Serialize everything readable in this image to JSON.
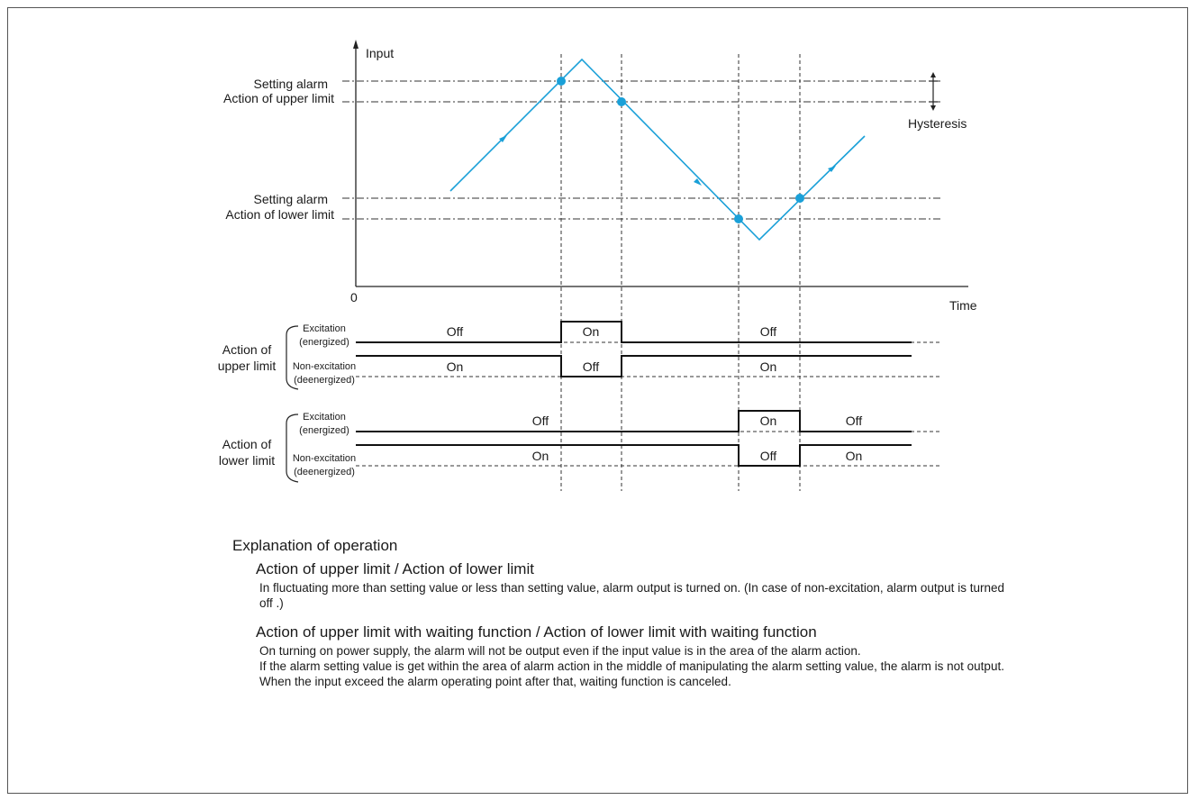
{
  "colors": {
    "signal": "#1aa0d8",
    "line": "#222222"
  },
  "diagram": {
    "axis_y_label": "Input",
    "axis_x_label": "Time",
    "origin_label": "0",
    "upper_setting": [
      "Setting alarm",
      "Action of upper limit"
    ],
    "lower_setting": [
      "Setting alarm",
      "Action of lower limit"
    ],
    "hysteresis_label": "Hysteresis",
    "groups": [
      {
        "title": [
          "Action of",
          "upper limit"
        ],
        "excitation": [
          "Excitation",
          "(energized)"
        ],
        "non_excitation": [
          "Non-excitation",
          "(deenergized)"
        ],
        "exc_states": [
          "Off",
          "On",
          "Off"
        ],
        "nonexc_states": [
          "On",
          "Off",
          "On"
        ]
      },
      {
        "title": [
          "Action of",
          "lower limit"
        ],
        "excitation": [
          "Excitation",
          "(energized)"
        ],
        "non_excitation": [
          "Non-excitation",
          "(deenergized)"
        ],
        "exc_states": [
          "Off",
          "On",
          "Off"
        ],
        "nonexc_states": [
          "On",
          "Off",
          "On"
        ]
      }
    ]
  },
  "explanation": {
    "heading": "Explanation of operation",
    "section1_title": "Action of upper limit  / Action of lower limit",
    "section1_body": "In fluctuating more than setting value or less than setting value, alarm output is turned on. (In case of non-excitation, alarm output is turned off .)",
    "section2_title": "Action of upper limit with waiting function  /   Action of lower limit with waiting function",
    "section2_body1": "On turning on power supply, the alarm will not be output even if the input value is in the area of the alarm action.",
    "section2_body2": "If the alarm setting value is get within the area of alarm action in the middle of manipulating the alarm setting value, the alarm is not output.",
    "section2_body3": "When the input exceed the alarm operating point after that, waiting function is canceled."
  }
}
